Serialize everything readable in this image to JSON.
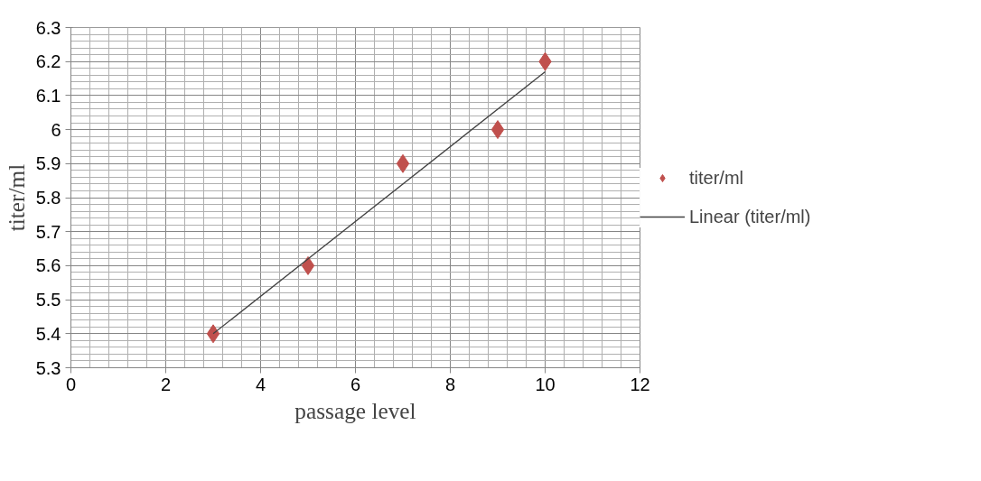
{
  "chart_data": {
    "type": "scatter",
    "xlabel": "passage level",
    "ylabel": "titer/ml",
    "xlim": [
      0,
      12
    ],
    "xticks": [
      0,
      2,
      4,
      6,
      8,
      10,
      12
    ],
    "ylim": [
      5.3,
      6.3
    ],
    "yticks": [
      5.3,
      5.4,
      5.5,
      5.6,
      5.7,
      5.8,
      5.9,
      {
        "value": 6.0,
        "label": "6"
      },
      6.1,
      6.2,
      6.3
    ],
    "grid": true,
    "legend": "right",
    "series": [
      {
        "name": "titer/ml",
        "color": "#c0504d",
        "marker": "diamond",
        "x": [
          3,
          5,
          7,
          9,
          10
        ],
        "values": [
          5.4,
          5.6,
          5.9,
          6.0,
          6.2
        ]
      },
      {
        "name": "Linear (titer/ml)",
        "type": "line",
        "color": "#404040",
        "x": [
          3,
          10
        ],
        "values": [
          5.4,
          6.17
        ]
      }
    ]
  }
}
